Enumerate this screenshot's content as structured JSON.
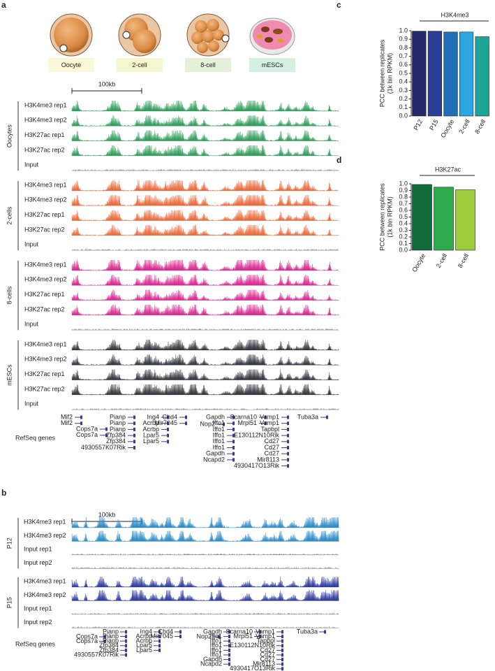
{
  "panel_a": {
    "label": "a",
    "stages": [
      "Oocyte",
      "2-cell",
      "8-cell",
      "mESCs"
    ],
    "stage_colors": [
      "#fbf8d8",
      "#f6f7cf",
      "#e5f2db",
      "#d4eedf"
    ],
    "scale_bar": "100kb",
    "groups": [
      {
        "name": "Oocytes",
        "tracks": [
          {
            "name": "H3K4me3 rep1",
            "color": "#2e9a57"
          },
          {
            "name": "H3K4me3 rep2",
            "color": "#2e9a57"
          },
          {
            "name": "H3K27ac rep1",
            "color": "#2e9a57"
          },
          {
            "name": "H3K27ac rep2",
            "color": "#2e9a57"
          },
          {
            "name": "Input",
            "color": "#8a8a8a"
          }
        ]
      },
      {
        "name": "2-cells",
        "tracks": [
          {
            "name": "H3K4me3 rep1",
            "color": "#e8683a"
          },
          {
            "name": "H3K4me3 rep2",
            "color": "#e8683a"
          },
          {
            "name": "H3K27ac rep1",
            "color": "#e8683a"
          },
          {
            "name": "H3K27ac rep2",
            "color": "#e8683a"
          },
          {
            "name": "Input",
            "color": "#8a8a8a"
          }
        ]
      },
      {
        "name": "8-cells",
        "tracks": [
          {
            "name": "H3K4me3 rep1",
            "color": "#d6268e"
          },
          {
            "name": "H3K4me3 rep2",
            "color": "#d6268e"
          },
          {
            "name": "H3K27ac rep1",
            "color": "#d6268e"
          },
          {
            "name": "H3K27ac rep2",
            "color": "#d6268e"
          },
          {
            "name": "Input",
            "color": "#8a8a8a"
          }
        ]
      },
      {
        "name": "mESCs",
        "tracks": [
          {
            "name": "H3K4me3 rep1",
            "color": "#33333d"
          },
          {
            "name": "H3K4me3 rep2",
            "color": "#33333d"
          },
          {
            "name": "H3K27ac rep1",
            "color": "#33333d"
          },
          {
            "name": "H3K27ac rep2",
            "color": "#33333d"
          },
          {
            "name": "Input",
            "color": "#8a8a8a"
          }
        ]
      }
    ],
    "genes_label": "RefSeq genes",
    "genes": [
      [
        "Mif2",
        "Mif2"
      ],
      [
        "Cops7a",
        "Cops7a"
      ],
      [
        "Pianp",
        "Pianp",
        "Pianp",
        "Zfp384",
        "Zfp384",
        "4930557K07Rik"
      ],
      [
        "Ing4",
        "Acrbp",
        "Acrbp",
        "Lpar5",
        "Lpar5"
      ],
      [
        "Chd4",
        "Mir7045"
      ],
      [
        "Nop2"
      ],
      [
        "Gapdh",
        "Iffo1",
        "Iffo1",
        "Iffo1",
        "Iffo1",
        "Iffo1",
        "Gapdh",
        "Ncapd2"
      ],
      [
        "Scarna10",
        "Mrpl51"
      ],
      [
        "Vamp1",
        "Vamp1",
        "Tapbpl",
        "E130112N10Rik",
        "Cd27",
        "Cd27",
        "Cd27",
        "Mir8113",
        "4930417O13Rik"
      ],
      [
        "Tuba3a"
      ]
    ]
  },
  "panel_b": {
    "label": "b",
    "scale_bar": "100kb",
    "groups": [
      {
        "name": "P12",
        "tracks": [
          {
            "name": "H3K4me3 rep1",
            "color": "#2a8ac8"
          },
          {
            "name": "H3K4me3 rep2",
            "color": "#2a8ac8"
          },
          {
            "name": "Input rep1",
            "color": "#8a8a8a"
          },
          {
            "name": "Input rep2",
            "color": "#8a8a8a"
          }
        ]
      },
      {
        "name": "P15",
        "tracks": [
          {
            "name": "H3K4me3 rep1",
            "color": "#2b3a9a"
          },
          {
            "name": "H3K4me3 rep2",
            "color": "#2b3a9a"
          },
          {
            "name": "Input rep1",
            "color": "#8a8a8a"
          },
          {
            "name": "Input rep2",
            "color": "#8a8a8a"
          }
        ]
      }
    ],
    "genes_label": "RefSeq genes",
    "genes": [
      [
        "Cops7a",
        "Cops7a"
      ],
      [
        "Pianp",
        "Pianp",
        "Pianp",
        "Zfp384",
        "Zfp384",
        "4930557K07Rik"
      ],
      [
        "Ing4",
        "Acrbp",
        "Acrbp",
        "Lpar5",
        "Lpar5"
      ],
      [
        "Chd4",
        "Mir7045"
      ],
      [
        "Nop2"
      ],
      [
        "Gapdh",
        "Iffo1",
        "Iffo1",
        "Iffo1",
        "Iffo1",
        "Iffo1",
        "Gapdh",
        "Ncapd2"
      ],
      [
        "Scarna10",
        "Mrpl51"
      ],
      [
        "Vamp1",
        "Vamp1",
        "Tapbpl",
        "E130112N10Rik",
        "Cd27",
        "Cd27",
        "Cd27",
        "Mir8113",
        "4930417O13Rik"
      ],
      [
        "Tuba3a"
      ]
    ]
  },
  "chart_data": [
    {
      "type": "bar",
      "panel_label": "c",
      "title": "H3K4me3",
      "ylabel": [
        "PCC between replicates",
        "(1k bin RPKM)"
      ],
      "categories": [
        "P12",
        "P15",
        "Oocyte",
        "2-cell",
        "8-cell"
      ],
      "values": [
        0.995,
        0.995,
        0.985,
        0.985,
        0.93
      ],
      "colors": [
        "#262a6b",
        "#2c3e95",
        "#1f70b6",
        "#2aa6e0",
        "#1ca597"
      ],
      "ylim": [
        0,
        1
      ],
      "yticks": [
        {
          "value": 0,
          "label": "0.0"
        },
        {
          "value": 0.1,
          "label": "0.1"
        },
        {
          "value": 0.2,
          "label": "0.2"
        },
        {
          "value": 0.3,
          "label": "0.3"
        },
        {
          "value": 0.4,
          "label": "0.4"
        },
        {
          "value": 0.5,
          "label": "0.5"
        },
        {
          "value": 0.6,
          "label": "0.6"
        },
        {
          "value": 0.7,
          "label": "0.7"
        },
        {
          "value": 0.8,
          "label": "0.8"
        },
        {
          "value": 0.9,
          "label": "0.9"
        },
        {
          "value": 1,
          "label": "1.0"
        }
      ]
    },
    {
      "type": "bar",
      "panel_label": "d",
      "title": "H3K27ac",
      "ylabel": [
        "PCC between replicates",
        "(1k bin RPKM)"
      ],
      "categories": [
        "Oocyte",
        "2-cell",
        "8-cell"
      ],
      "values": [
        0.99,
        0.95,
        0.91
      ],
      "colors": [
        "#0f6b3a",
        "#2fab4b",
        "#9dcd3c"
      ],
      "ylim": [
        0,
        1
      ],
      "yticks": [
        {
          "value": 0,
          "label": "0.0"
        },
        {
          "value": 0.1,
          "label": "0.1"
        },
        {
          "value": 0.2,
          "label": "0.2"
        },
        {
          "value": 0.3,
          "label": "0.3"
        },
        {
          "value": 0.4,
          "label": "0.4"
        },
        {
          "value": 0.5,
          "label": "0.5"
        },
        {
          "value": 0.6,
          "label": "0.6"
        },
        {
          "value": 0.7,
          "label": "0.7"
        },
        {
          "value": 0.8,
          "label": "0.8"
        },
        {
          "value": 0.9,
          "label": "0.9"
        },
        {
          "value": 1,
          "label": "1.0"
        }
      ]
    }
  ]
}
